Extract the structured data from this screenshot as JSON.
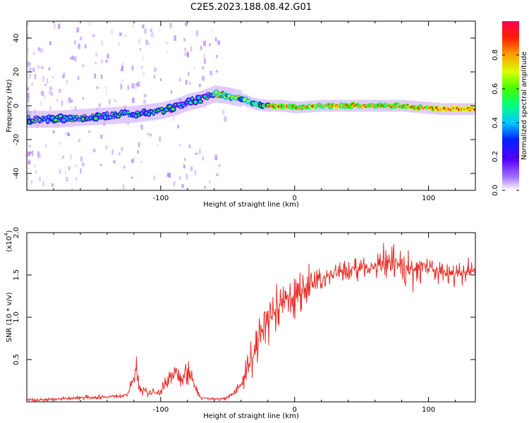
{
  "title": "C2E5.2023.188.08.42.G01",
  "chart_data": [
    {
      "type": "heatmap",
      "title": "",
      "xlabel": "Height of straight line (km)",
      "ylabel": "Frequency (Hz)",
      "xlim": [
        -200,
        135
      ],
      "ylim": [
        -50,
        50
      ],
      "x_ticks": [
        -100,
        0,
        100
      ],
      "y_ticks": [
        -40,
        -20,
        0,
        20,
        40
      ],
      "centerline": {
        "x": [
          -200,
          -180,
          -160,
          -140,
          -120,
          -100,
          -90,
          -80,
          -70,
          -60,
          -50,
          -40,
          -30,
          -20,
          -10,
          0,
          20,
          50,
          80,
          110,
          135
        ],
        "y": [
          -8,
          -8,
          -7,
          -6,
          -5,
          -3,
          -1,
          2,
          4,
          7,
          6,
          4,
          1,
          0,
          0,
          -1,
          0,
          0,
          0,
          -2,
          -2
        ]
      },
      "colorbar": {
        "label": "Normalized spectral amplitude",
        "ticks": [
          "0.0",
          "0.2",
          "0.4",
          "0.6",
          "0.8"
        ],
        "colors": [
          "#ffffff",
          "#a070ff",
          "#5a00ff",
          "#0020ff",
          "#00c8ff",
          "#00ff80",
          "#40ff00",
          "#d8ff00",
          "#ffa000",
          "#ff2000",
          "#ff0050"
        ]
      }
    },
    {
      "type": "line",
      "title": "",
      "xlabel": "Height of straight line (km)",
      "ylabel": "SNR (10 * v/v)",
      "ylabel_scale": "(x10",
      "ylabel_scale_exp": "4",
      "ylabel_scale_close": ")",
      "xlim": [
        -200,
        135
      ],
      "ylim": [
        0,
        2.0
      ],
      "x_ticks": [
        -100,
        0,
        100
      ],
      "y_ticks": [
        0.5,
        1.0,
        1.5,
        2.0
      ],
      "series": [
        {
          "color": "#e8302a",
          "x": [
            -200,
            -180,
            -160,
            -140,
            -125,
            -118,
            -115,
            -110,
            -100,
            -95,
            -90,
            -85,
            -80,
            -75,
            -70,
            -60,
            -50,
            -45,
            -40,
            -35,
            -30,
            -25,
            -20,
            -15,
            -10,
            -5,
            0,
            10,
            20,
            30,
            40,
            50,
            60,
            70,
            80,
            90,
            95,
            100,
            110,
            120,
            135
          ],
          "y": [
            0.02,
            0.03,
            0.05,
            0.06,
            0.08,
            0.35,
            0.15,
            0.1,
            0.12,
            0.25,
            0.35,
            0.3,
            0.4,
            0.2,
            0.05,
            0.03,
            0.05,
            0.1,
            0.2,
            0.45,
            0.55,
            0.85,
            0.95,
            1.05,
            1.15,
            1.2,
            1.25,
            1.35,
            1.45,
            1.52,
            1.56,
            1.58,
            1.6,
            1.62,
            1.6,
            1.55,
            1.65,
            1.58,
            1.52,
            1.5,
            1.55
          ]
        }
      ]
    }
  ]
}
